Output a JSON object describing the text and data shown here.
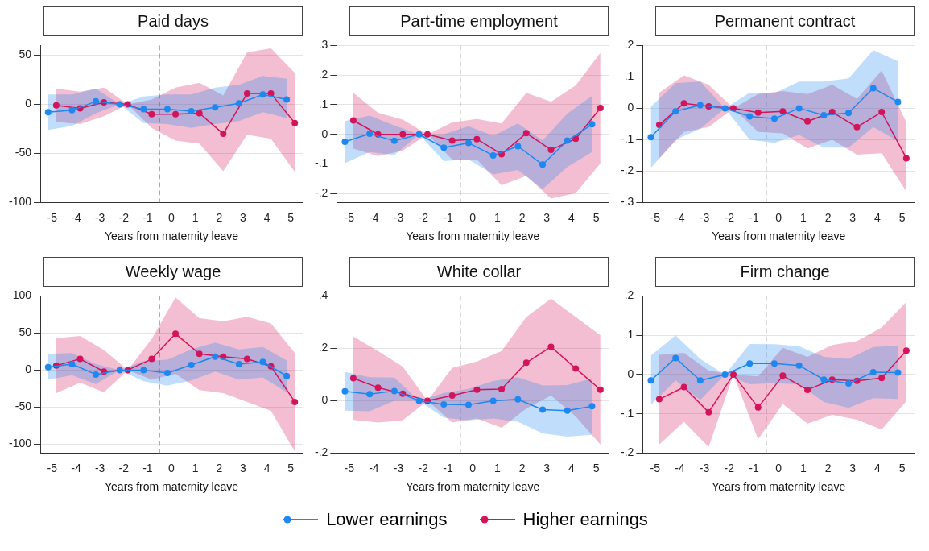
{
  "chart_data": [
    {
      "type": "line",
      "title": "Paid days",
      "xlabel": "Years from maternity leave",
      "xlim": [
        -5.5,
        5.5
      ],
      "xticks": [
        -5,
        -4,
        -3,
        -2,
        -1,
        0,
        1,
        2,
        3,
        4,
        5
      ],
      "ylim": [
        -100,
        60
      ],
      "yticks": [
        -100,
        -50,
        0,
        50
      ],
      "grid": "y",
      "marker": "circle",
      "line_style": "solid",
      "ref_lines": [
        {
          "axis": "x",
          "value": -0.5,
          "color": "#888888",
          "line_style": "dashed"
        }
      ],
      "series": [
        {
          "color": "#1e88f0",
          "x": [
            -5.17,
            -4.17,
            -3.17,
            -2.17,
            -1.17,
            -0.17,
            0.83,
            1.83,
            2.83,
            3.83,
            4.83
          ],
          "values": [
            -8,
            -6,
            3,
            0,
            -5,
            -5,
            -7,
            -3,
            1,
            10,
            5
          ],
          "lower": [
            -26,
            -22,
            -9,
            0,
            -19,
            -20,
            -24,
            -20,
            -17,
            -8,
            -14
          ],
          "upper": [
            10,
            10,
            16,
            0,
            8,
            10,
            10,
            17,
            20,
            29,
            26
          ]
        },
        {
          "color": "#d4145a",
          "x": [
            -4.83,
            -3.83,
            -2.83,
            -1.83,
            -0.83,
            0.17,
            1.17,
            2.17,
            3.17,
            4.17,
            5.17
          ],
          "values": [
            -1,
            -4,
            2,
            0,
            -10,
            -10,
            -9,
            -30,
            11,
            11,
            -19
          ],
          "lower": [
            -18,
            -20,
            -12,
            0,
            -24,
            -37,
            -40,
            -68,
            -31,
            -35,
            -69
          ],
          "upper": [
            16,
            13,
            17,
            0,
            5,
            17,
            22,
            9,
            53,
            57,
            32
          ]
        }
      ]
    },
    {
      "type": "line",
      "title": "Part-time employment",
      "xlabel": "Years from maternity leave",
      "xlim": [
        -5.5,
        5.5
      ],
      "xticks": [
        -5,
        -4,
        -3,
        -2,
        -1,
        0,
        1,
        2,
        3,
        4,
        5
      ],
      "ylim": [
        -0.23,
        0.3
      ],
      "yticks": [
        {
          "value": -0.2,
          "label": "-.2"
        },
        {
          "value": -0.1,
          "label": "-.1"
        },
        0,
        {
          "value": 0.1,
          "label": ".1"
        },
        {
          "value": 0.2,
          "label": ".2"
        },
        {
          "value": 0.3,
          "label": ".3"
        }
      ],
      "grid": "y",
      "marker": "circle",
      "line_style": "solid",
      "ref_lines": [
        {
          "axis": "x",
          "value": -0.5,
          "color": "#888888",
          "line_style": "dashed"
        }
      ],
      "series": [
        {
          "color": "#1e88f0",
          "x": [
            -5.17,
            -4.17,
            -3.17,
            -2.17,
            -1.17,
            -0.17,
            0.83,
            1.83,
            2.83,
            3.83,
            4.83
          ],
          "values": [
            -0.025,
            0.002,
            -0.022,
            0,
            -0.045,
            -0.029,
            -0.071,
            -0.04,
            -0.102,
            -0.021,
            0.034
          ],
          "lower": [
            -0.097,
            -0.06,
            -0.07,
            0,
            -0.09,
            -0.085,
            -0.135,
            -0.12,
            -0.185,
            -0.11,
            -0.06
          ],
          "upper": [
            0.045,
            0.063,
            0.03,
            0,
            0,
            0.027,
            -0.005,
            0.037,
            -0.02,
            0.07,
            0.13
          ]
        },
        {
          "color": "#d4145a",
          "x": [
            -4.83,
            -3.83,
            -2.83,
            -1.83,
            -0.83,
            0.17,
            1.17,
            2.17,
            3.17,
            4.17,
            5.17
          ],
          "values": [
            0.047,
            0,
            0,
            0,
            -0.021,
            -0.016,
            -0.067,
            0.004,
            -0.052,
            -0.015,
            0.089
          ],
          "lower": [
            -0.048,
            -0.073,
            -0.055,
            0,
            -0.085,
            -0.085,
            -0.172,
            -0.14,
            -0.217,
            -0.198,
            -0.098
          ],
          "upper": [
            0.14,
            0.073,
            0.05,
            0,
            0.04,
            0.052,
            0.037,
            0.14,
            0.11,
            0.165,
            0.275
          ]
        }
      ]
    },
    {
      "type": "line",
      "title": "Permanent contract",
      "xlabel": "Years from maternity leave",
      "xlim": [
        -5.5,
        5.5
      ],
      "xticks": [
        -5,
        -4,
        -3,
        -2,
        -1,
        0,
        1,
        2,
        3,
        4,
        5
      ],
      "ylim": [
        -0.3,
        0.2
      ],
      "yticks": [
        {
          "value": -0.3,
          "label": "-.3"
        },
        {
          "value": -0.2,
          "label": "-.2"
        },
        {
          "value": -0.1,
          "label": "-.1"
        },
        0,
        {
          "value": 0.1,
          "label": ".1"
        },
        {
          "value": 0.2,
          "label": ".2"
        }
      ],
      "grid": "y",
      "marker": "circle",
      "line_style": "solid",
      "ref_lines": [
        {
          "axis": "x",
          "value": -0.5,
          "color": "#888888",
          "line_style": "dashed"
        }
      ],
      "series": [
        {
          "color": "#1e88f0",
          "x": [
            -5.17,
            -4.17,
            -3.17,
            -2.17,
            -1.17,
            -0.17,
            0.83,
            1.83,
            2.83,
            3.83,
            4.83
          ],
          "values": [
            -0.092,
            -0.01,
            0.01,
            0,
            -0.026,
            -0.033,
            0,
            -0.022,
            -0.015,
            0.064,
            0.02
          ],
          "lower": [
            -0.19,
            -0.1,
            -0.065,
            0,
            -0.1,
            -0.11,
            -0.085,
            -0.125,
            -0.125,
            -0.06,
            -0.105
          ],
          "upper": [
            0.005,
            0.08,
            0.085,
            0,
            0.05,
            0.048,
            0.085,
            0.085,
            0.095,
            0.185,
            0.15
          ]
        },
        {
          "color": "#d4145a",
          "x": [
            -4.83,
            -3.83,
            -2.83,
            -1.83,
            -0.83,
            0.17,
            1.17,
            2.17,
            3.17,
            4.17,
            5.17
          ],
          "values": [
            -0.053,
            0.016,
            0.006,
            0,
            -0.014,
            -0.01,
            -0.042,
            -0.012,
            -0.06,
            -0.012,
            -0.159
          ],
          "lower": [
            -0.16,
            -0.075,
            -0.06,
            0,
            -0.075,
            -0.08,
            -0.128,
            -0.1,
            -0.148,
            -0.143,
            -0.265
          ],
          "upper": [
            0.05,
            0.105,
            0.075,
            0,
            0.045,
            0.055,
            0.045,
            0.075,
            0.03,
            0.12,
            -0.045
          ]
        }
      ]
    },
    {
      "type": "line",
      "title": "Weekly wage",
      "xlabel": "Years from maternity leave",
      "xlim": [
        -5.5,
        5.5
      ],
      "xticks": [
        -5,
        -4,
        -3,
        -2,
        -1,
        0,
        1,
        2,
        3,
        4,
        5
      ],
      "ylim": [
        -112,
        100
      ],
      "yticks": [
        -100,
        -50,
        0,
        50,
        100
      ],
      "grid": "y",
      "marker": "circle",
      "line_style": "solid",
      "ref_lines": [
        {
          "axis": "x",
          "value": -0.5,
          "color": "#888888",
          "line_style": "dashed"
        }
      ],
      "series": [
        {
          "color": "#1e88f0",
          "x": [
            -5.17,
            -4.17,
            -3.17,
            -2.17,
            -1.17,
            -0.17,
            0.83,
            1.83,
            2.83,
            3.83,
            4.83
          ],
          "values": [
            4,
            8,
            -6,
            0,
            0,
            -4,
            7,
            18,
            8,
            11,
            -8
          ],
          "lower": [
            -13,
            -7,
            -19,
            0,
            -15,
            -21,
            -14,
            -2,
            -13,
            -10,
            -30
          ],
          "upper": [
            22,
            23,
            8,
            0,
            12,
            14,
            28,
            37,
            28,
            31,
            13
          ]
        },
        {
          "color": "#d4145a",
          "x": [
            -4.83,
            -3.83,
            -2.83,
            -1.83,
            -0.83,
            0.17,
            1.17,
            2.17,
            3.17,
            4.17,
            5.17
          ],
          "values": [
            6,
            15,
            -2,
            0,
            15,
            49,
            22,
            18,
            15,
            5,
            -43
          ],
          "lower": [
            -31,
            -17,
            -30,
            0,
            -13,
            -5,
            -27,
            -31,
            -43,
            -55,
            -110
          ],
          "upper": [
            43,
            46,
            27,
            0,
            42,
            98,
            70,
            66,
            72,
            63,
            23
          ]
        }
      ]
    },
    {
      "type": "line",
      "title": "White collar",
      "xlabel": "Years from maternity leave",
      "xlim": [
        -5.5,
        5.5
      ],
      "xticks": [
        -5,
        -4,
        -3,
        -2,
        -1,
        0,
        1,
        2,
        3,
        4,
        5
      ],
      "ylim": [
        -0.2,
        0.4
      ],
      "yticks": [
        {
          "value": -0.2,
          "label": "-.2"
        },
        0,
        {
          "value": 0.2,
          "label": ".2"
        },
        {
          "value": 0.4,
          "label": ".4"
        }
      ],
      "grid": "y",
      "marker": "circle",
      "line_style": "solid",
      "ref_lines": [
        {
          "axis": "x",
          "value": -0.5,
          "color": "#888888",
          "line_style": "dashed"
        }
      ],
      "series": [
        {
          "color": "#1e88f0",
          "x": [
            -5.17,
            -4.17,
            -3.17,
            -2.17,
            -1.17,
            -0.17,
            0.83,
            1.83,
            2.83,
            3.83,
            4.83
          ],
          "values": [
            0.036,
            0.025,
            0.037,
            0,
            -0.014,
            -0.016,
            0,
            0.005,
            -0.034,
            -0.038,
            -0.021
          ],
          "lower": [
            -0.038,
            -0.04,
            0,
            0,
            -0.065,
            -0.075,
            -0.068,
            -0.08,
            -0.125,
            -0.137,
            -0.13
          ],
          "upper": [
            0.11,
            0.09,
            0.088,
            0,
            0.03,
            0.045,
            0.075,
            0.09,
            0.058,
            0.06,
            0.085
          ]
        },
        {
          "color": "#d4145a",
          "x": [
            -4.83,
            -3.83,
            -2.83,
            -1.83,
            -0.83,
            0.17,
            1.17,
            2.17,
            3.17,
            4.17,
            5.17
          ],
          "values": [
            0.086,
            0.05,
            0.027,
            0,
            0.02,
            0.042,
            0.044,
            0.145,
            0.206,
            0.123,
            0.042
          ],
          "lower": [
            -0.073,
            -0.083,
            -0.075,
            0,
            -0.083,
            -0.068,
            -0.103,
            -0.03,
            0.02,
            -0.06,
            -0.168
          ],
          "upper": [
            0.245,
            0.19,
            0.13,
            0,
            0.125,
            0.15,
            0.19,
            0.32,
            0.39,
            0.32,
            0.25
          ]
        }
      ]
    },
    {
      "type": "line",
      "title": "Firm change",
      "xlabel": "Years from maternity leave",
      "xlim": [
        -5.5,
        5.5
      ],
      "xticks": [
        -5,
        -4,
        -3,
        -2,
        -1,
        0,
        1,
        2,
        3,
        4,
        5
      ],
      "ylim": [
        -0.2,
        0.2
      ],
      "yticks": [
        {
          "value": -0.2,
          "label": "-.2"
        },
        {
          "value": -0.1,
          "label": "-.1"
        },
        0,
        {
          "value": 0.1,
          "label": ".1"
        },
        {
          "value": 0.2,
          "label": ".2"
        }
      ],
      "grid": "y",
      "legend": "bottom",
      "marker": "circle",
      "line_style": "solid",
      "ref_lines": [
        {
          "axis": "x",
          "value": -0.5,
          "color": "#888888",
          "line_style": "dashed"
        }
      ],
      "series": [
        {
          "name": "Lower earnings",
          "color": "#1e88f0",
          "x": [
            -5.17,
            -4.17,
            -3.17,
            -2.17,
            -1.17,
            -0.17,
            0.83,
            1.83,
            2.83,
            3.83,
            4.83
          ],
          "values": [
            -0.015,
            0.042,
            -0.015,
            0,
            0.028,
            0.028,
            0.023,
            -0.013,
            -0.023,
            0.006,
            0.005
          ],
          "lower": [
            -0.077,
            -0.015,
            -0.065,
            0,
            -0.025,
            -0.022,
            -0.025,
            -0.07,
            -0.085,
            -0.06,
            -0.062
          ],
          "upper": [
            0.048,
            0.1,
            0.04,
            0,
            0.078,
            0.077,
            0.072,
            0.045,
            0.04,
            0.07,
            0.073
          ]
        },
        {
          "name": "Higher earnings",
          "color": "#d4145a",
          "x": [
            -4.83,
            -3.83,
            -2.83,
            -1.83,
            -0.83,
            0.17,
            1.17,
            2.17,
            3.17,
            4.17,
            5.17
          ],
          "values": [
            -0.063,
            -0.032,
            -0.096,
            0,
            -0.084,
            -0.003,
            -0.039,
            -0.013,
            -0.016,
            -0.009,
            0.061
          ],
          "lower": [
            -0.178,
            -0.12,
            -0.185,
            0,
            -0.165,
            -0.075,
            -0.125,
            -0.103,
            -0.115,
            -0.14,
            -0.068
          ],
          "upper": [
            0.05,
            0.055,
            0.01,
            0,
            -0.005,
            0.068,
            0.045,
            0.075,
            0.085,
            0.12,
            0.185
          ]
        }
      ]
    }
  ]
}
